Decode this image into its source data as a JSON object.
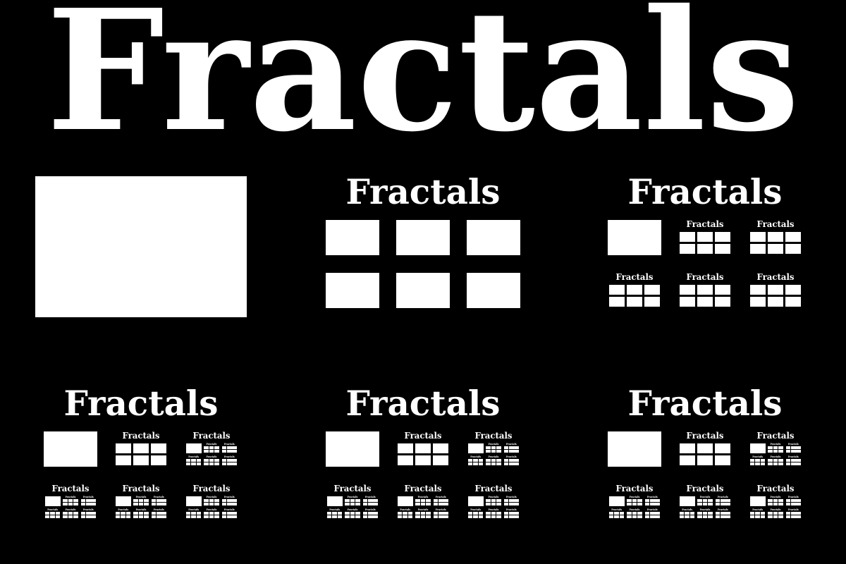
{
  "word": "Fractals",
  "colors": {
    "background": "#000000",
    "foreground": "#ffffff"
  },
  "recursion_depths": [
    0,
    1,
    2,
    3,
    4,
    5
  ]
}
